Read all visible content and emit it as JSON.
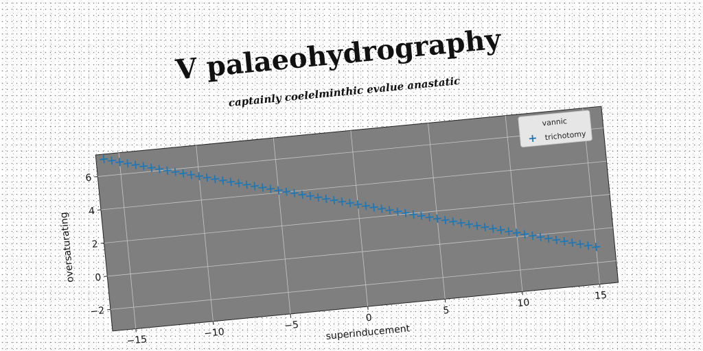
{
  "chart_data": {
    "type": "scatter",
    "title": "V palaeohydrography",
    "subtitle": "captainly coelelminthic evalue anastatic",
    "xlabel": "superinducement",
    "ylabel": "oversaturating",
    "xlim": [
      -16.5,
      16.2
    ],
    "ylim": [
      -3.3,
      7.3
    ],
    "xticks": [
      -15,
      -10,
      -5,
      0,
      5,
      10,
      15
    ],
    "yticks": [
      -2,
      0,
      2,
      4,
      6
    ],
    "xtick_labels": [
      "−15",
      "−10",
      "−5",
      "0",
      "5",
      "10",
      "15"
    ],
    "ytick_labels": [
      "−2",
      "0",
      "2",
      "4",
      "6"
    ],
    "grid": true,
    "legend": {
      "title": "vannic",
      "position": "top-right",
      "entries": [
        "trichotomy"
      ]
    },
    "series": [
      {
        "name": "trichotomy",
        "marker": "+",
        "color": "#1f77b4",
        "x": [
          -16.0,
          -15.5,
          -15.0,
          -14.5,
          -14.0,
          -13.5,
          -13.0,
          -12.5,
          -12.0,
          -11.5,
          -11.0,
          -10.5,
          -10.0,
          -9.5,
          -9.0,
          -8.5,
          -8.0,
          -7.5,
          -7.0,
          -6.5,
          -6.0,
          -5.5,
          -5.0,
          -4.5,
          -4.0,
          -3.5,
          -3.0,
          -2.5,
          -2.0,
          -1.5,
          -1.0,
          -0.5,
          0.0,
          0.5,
          1.0,
          1.5,
          2.0,
          2.5,
          3.0,
          3.5,
          4.0,
          4.5,
          5.0,
          5.5,
          6.0,
          6.5,
          7.0,
          7.5,
          8.0,
          8.5,
          9.0,
          9.5,
          10.0,
          10.5,
          11.0,
          11.5,
          12.0,
          12.5,
          13.0,
          13.5,
          14.0,
          14.5,
          15.0
        ],
        "y": [
          7.0,
          6.87,
          6.74,
          6.61,
          6.48,
          6.35,
          6.22,
          6.09,
          5.96,
          5.83,
          5.7,
          5.57,
          5.44,
          5.31,
          5.18,
          5.05,
          4.92,
          4.79,
          4.66,
          4.53,
          4.4,
          4.27,
          4.14,
          4.01,
          3.88,
          3.75,
          3.62,
          3.49,
          3.36,
          3.23,
          3.1,
          2.97,
          2.84,
          2.71,
          2.58,
          2.45,
          2.32,
          2.19,
          2.06,
          1.93,
          1.8,
          1.67,
          1.54,
          1.41,
          1.28,
          1.15,
          1.02,
          0.89,
          0.76,
          0.63,
          0.5,
          0.37,
          0.24,
          0.11,
          -0.02,
          -0.15,
          -0.28,
          -0.41,
          -0.54,
          -0.67,
          -0.8,
          -0.93,
          -1.06
        ]
      }
    ]
  },
  "colors": {
    "plot_background": "#7f7f7f",
    "grid": "#c8c8c8",
    "marker": "#1f77b4",
    "legend_background": "#e6e6e6"
  }
}
